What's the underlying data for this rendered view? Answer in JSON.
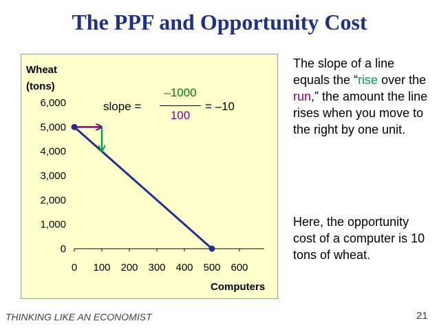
{
  "slide": {
    "title": "The PPF and Opportunity Cost",
    "footer": "THINKING LIKE AN ECONOMIST",
    "page_number": "21"
  },
  "chart_data": {
    "type": "line",
    "ylabel_line1": "Wheat",
    "ylabel_line2": "(tons)",
    "xlabel": "Computers",
    "x_ticks": [
      "0",
      "100",
      "200",
      "300",
      "400",
      "500",
      "600"
    ],
    "y_ticks": [
      "0",
      "1,000",
      "2,000",
      "3,000",
      "4,000",
      "5,000",
      "6,000"
    ],
    "xlim": [
      0,
      600
    ],
    "ylim": [
      0,
      6000
    ],
    "series": [
      {
        "points": [
          [
            0,
            5000
          ],
          [
            500,
            0
          ]
        ],
        "color": "#1f2f8c"
      }
    ],
    "run_arrow": {
      "from": [
        0,
        5000
      ],
      "to": [
        100,
        5000
      ],
      "color": "#7f007f"
    },
    "rise_arrow": {
      "from": [
        100,
        5000
      ],
      "to": [
        100,
        4000
      ],
      "color": "#00a050"
    },
    "slope_annotation": {
      "label": "slope =",
      "numerator": "–1000",
      "denominator": "100",
      "result": "= –10"
    }
  },
  "explanation": {
    "part1": "The slope of a line equals the “",
    "rise": "rise",
    "part2": " over the ",
    "run": "run",
    "part3": ",” the amount the line rises when you move to the right by one unit.",
    "para2": "Here, the opportunity cost of a computer is 10 tons of wheat."
  },
  "colors": {
    "title": "#1f2f8c",
    "ppf_line": "#1f2f8c",
    "rise": "#00a050",
    "run": "#7f007f",
    "panel_bg": "#ffffcc"
  }
}
